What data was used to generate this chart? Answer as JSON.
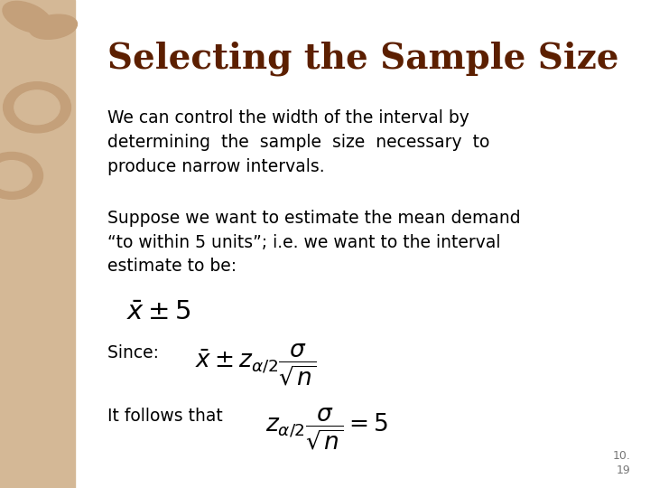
{
  "title": "Selecting the Sample Size",
  "title_color": "#5C1F00",
  "title_fontsize": 28,
  "body_color": "#000000",
  "body_fontsize": 13.5,
  "bg_color": "#FFFFFF",
  "left_panel_color": "#D4B896",
  "left_panel_dark": "#C4A07A",
  "slide_number": "10.\n19",
  "para1": "We can control the width of the interval by\ndetermining  the  sample  size  necessary  to\nproduce narrow intervals.",
  "para2": "Suppose we want to estimate the mean demand\n“to within 5 units”; i.e. we want to the interval\nestimate to be:",
  "formula1": "$\\bar{x} \\pm 5$",
  "label_since": "Since: ",
  "formula2": "$\\bar{x} \\pm z_{\\alpha/2}\\dfrac{\\sigma}{\\sqrt{n}}$",
  "label_it_follows": "It follows that",
  "formula3": "$z_{\\alpha/2}\\dfrac{\\sigma}{\\sqrt{n}} = 5$"
}
